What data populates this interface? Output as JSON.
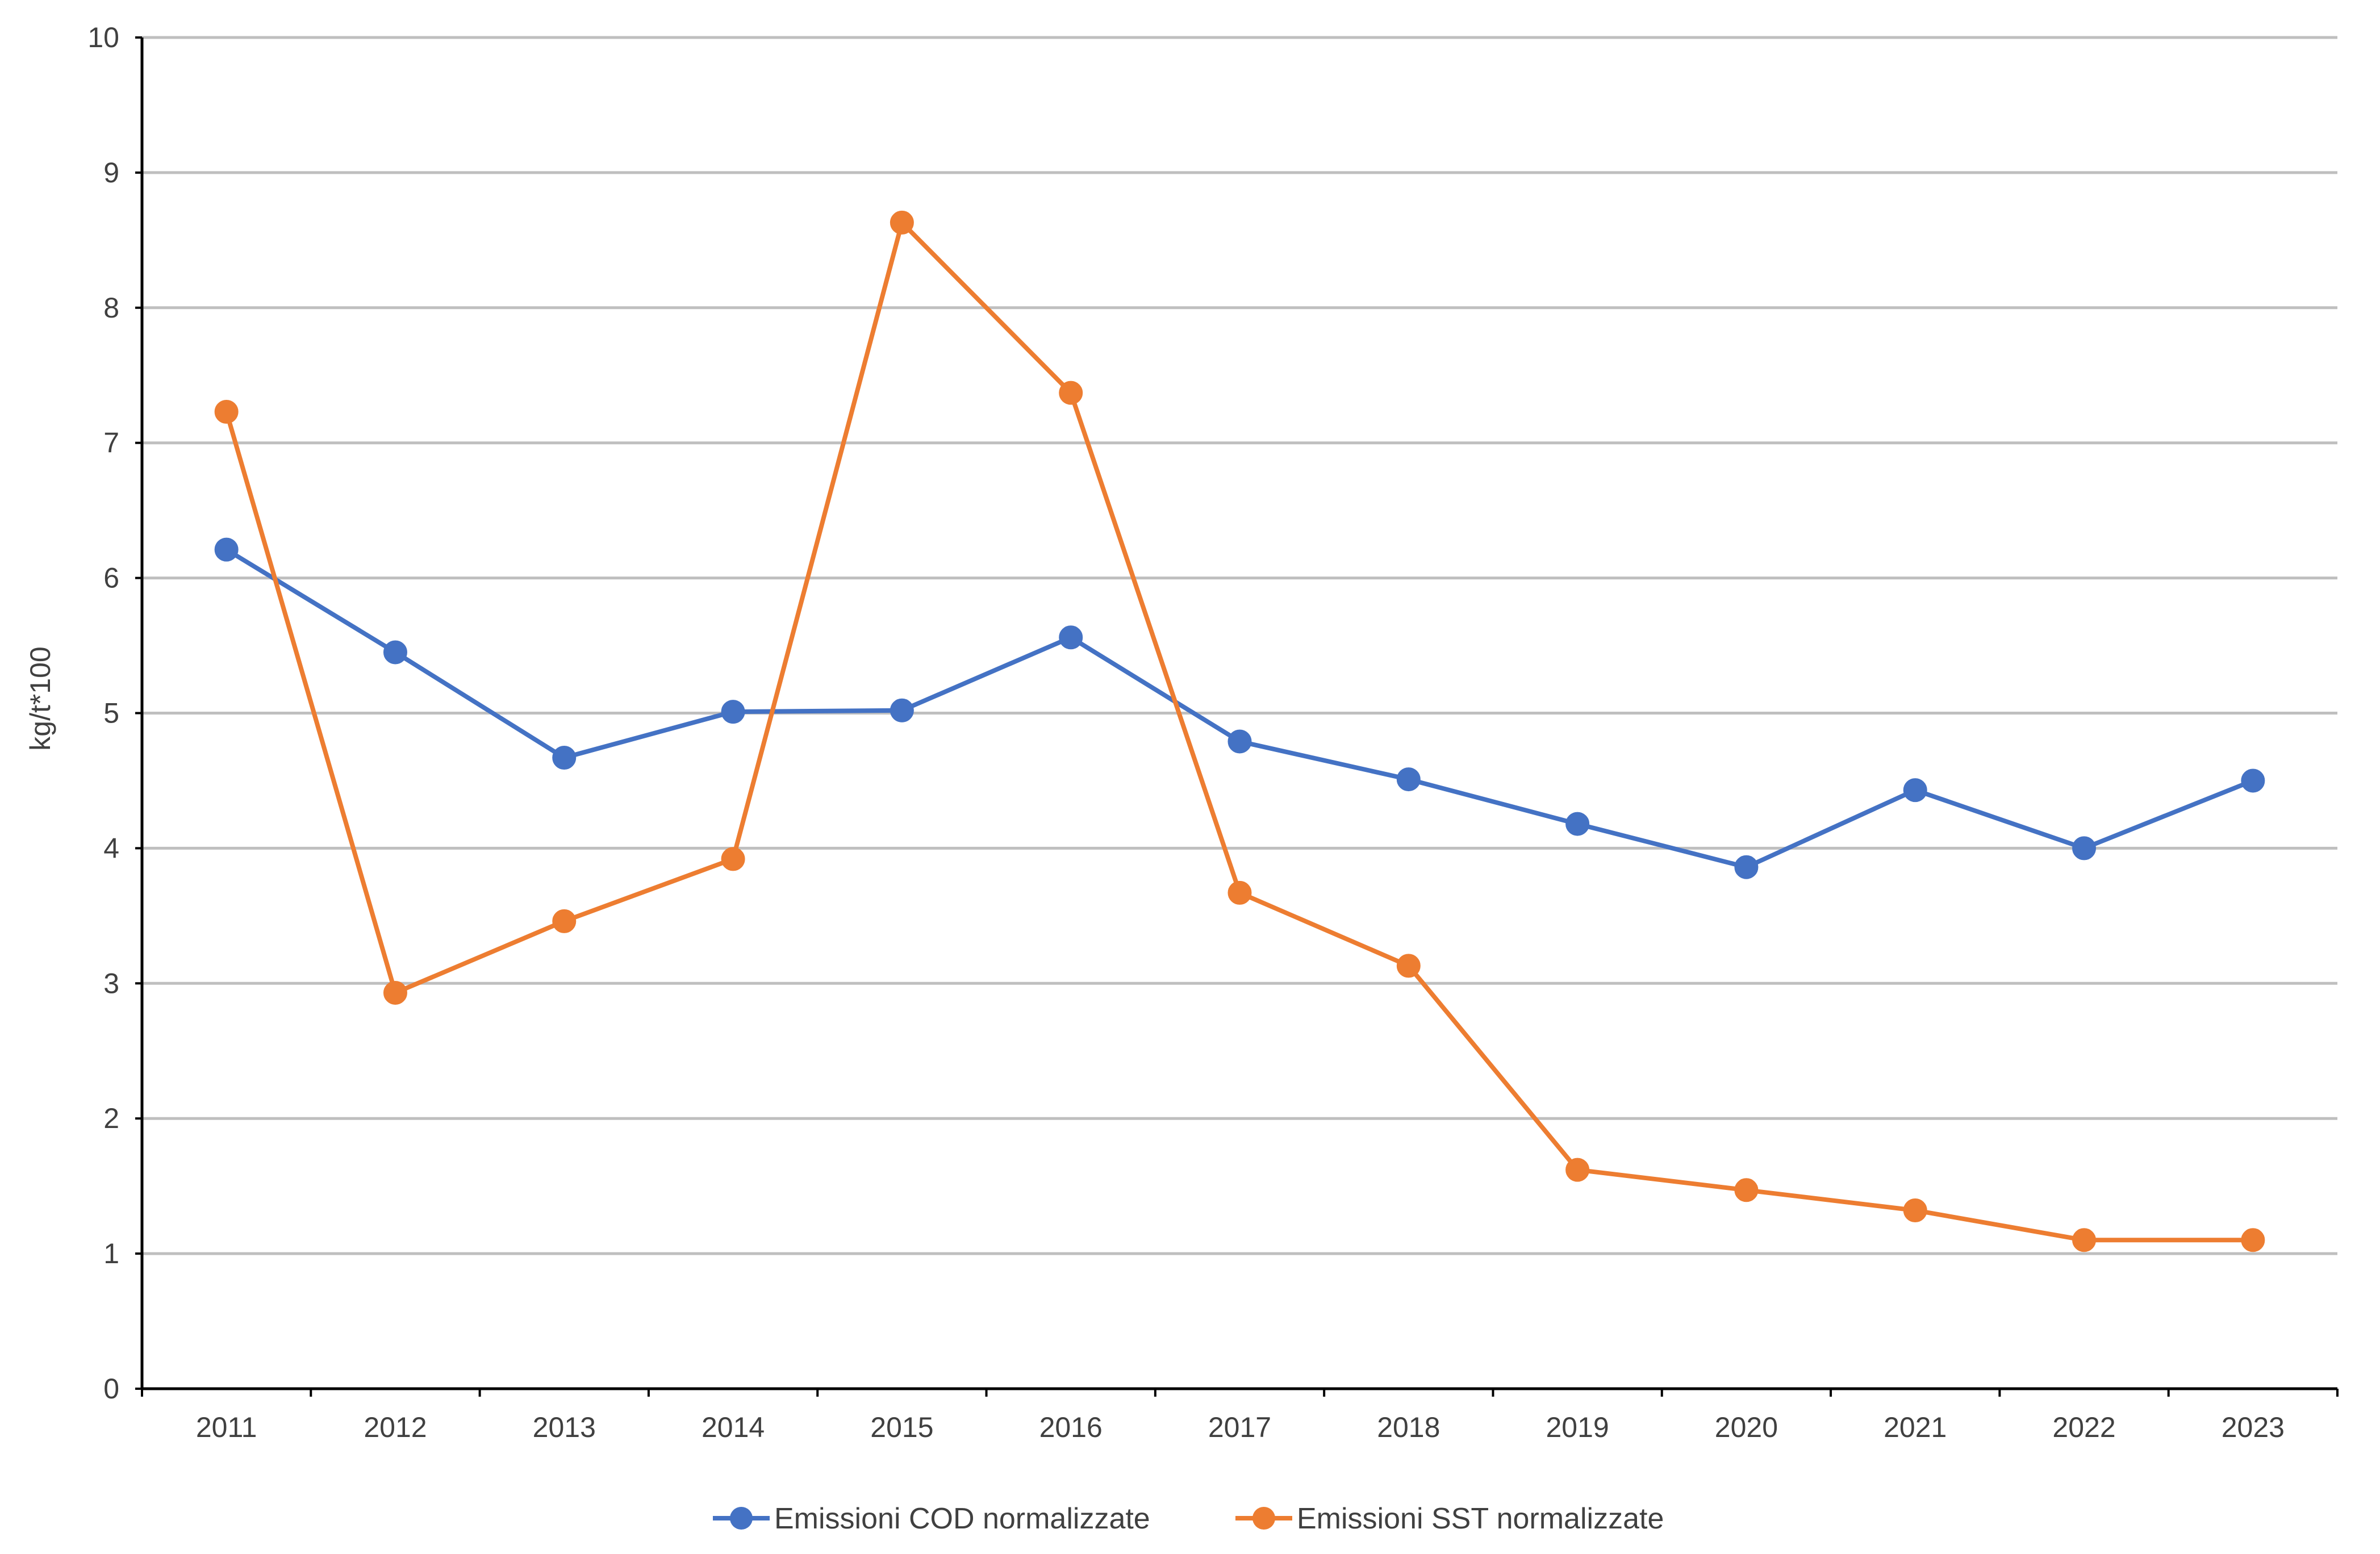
{
  "chart_data": {
    "type": "line",
    "title": "",
    "xlabel": "",
    "ylabel": "kg/t*100",
    "ylim": [
      0,
      10
    ],
    "yticks": [
      0,
      1,
      2,
      3,
      4,
      5,
      6,
      7,
      8,
      9,
      10
    ],
    "grid": "horizontal",
    "legend_position": "bottom",
    "categories": [
      "2011",
      "2012",
      "2013",
      "2014",
      "2015",
      "2016",
      "2017",
      "2018",
      "2019",
      "2020",
      "2021",
      "2022",
      "2023"
    ],
    "series": [
      {
        "name": "Emissioni COD normalizzate",
        "color": "#4472C4",
        "values": [
          6.21,
          5.45,
          4.67,
          5.01,
          5.02,
          5.56,
          4.79,
          4.51,
          4.18,
          3.86,
          4.43,
          4.0,
          4.5
        ]
      },
      {
        "name": "Emissioni SST normalizzate",
        "color": "#ED7D31",
        "values": [
          7.23,
          2.93,
          3.46,
          3.92,
          8.63,
          7.37,
          3.67,
          3.13,
          1.62,
          1.47,
          1.32,
          1.1,
          1.1
        ]
      }
    ]
  }
}
